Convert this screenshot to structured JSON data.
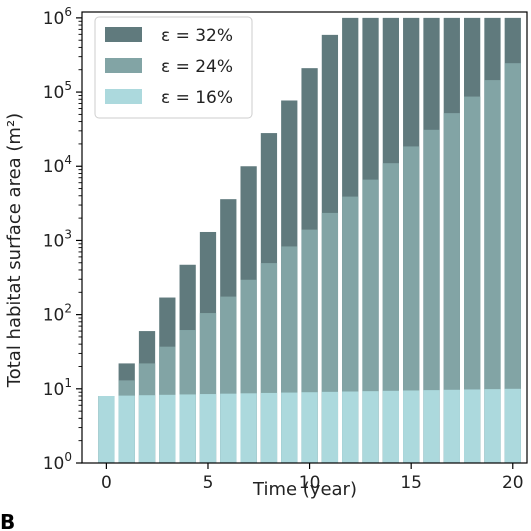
{
  "chart_data": {
    "type": "bar",
    "xlabel": "Time (year)",
    "ylabel": "Total habitat surface area (m²)",
    "yscale": "log",
    "ylim": [
      1,
      1200000
    ],
    "xlim": [
      -1.2,
      20.7
    ],
    "x_ticks": [
      0,
      5,
      10,
      15,
      20
    ],
    "y_ticks": [
      {
        "value": 1,
        "base": "10",
        "exp": "0"
      },
      {
        "value": 10,
        "base": "10",
        "exp": "1"
      },
      {
        "value": 100,
        "base": "10",
        "exp": "2"
      },
      {
        "value": 1000,
        "base": "10",
        "exp": "3"
      },
      {
        "value": 10000,
        "base": "10",
        "exp": "4"
      },
      {
        "value": 100000,
        "base": "10",
        "exp": "5"
      },
      {
        "value": 1000000,
        "base": "10",
        "exp": "6"
      }
    ],
    "legend_position": "top-left",
    "panel_label": "B",
    "x": [
      0,
      1,
      2,
      3,
      4,
      5,
      6,
      7,
      8,
      9,
      10,
      11,
      12,
      13,
      14,
      15,
      16,
      17,
      18,
      19,
      20
    ],
    "series": [
      {
        "name": "ε = 32%",
        "color": "#607a7d",
        "values": [
          8,
          22,
          60,
          170,
          470,
          1300,
          3600,
          10000,
          28000,
          77000,
          210000,
          590000,
          1000000,
          1000000,
          1000000,
          1000000,
          1000000,
          1000000,
          1000000,
          1000000,
          1000000
        ]
      },
      {
        "name": "ε = 24%",
        "color": "#82a4a5",
        "values": [
          8,
          13,
          22,
          37,
          62,
          105,
          175,
          295,
          495,
          830,
          1400,
          2350,
          3900,
          6600,
          11000,
          18500,
          31000,
          52000,
          87000,
          145000,
          245000
        ]
      },
      {
        "name": "ε = 16%",
        "color": "#acd9dd",
        "values": [
          8,
          8.1,
          8.2,
          8.3,
          8.4,
          8.5,
          8.6,
          8.7,
          8.8,
          8.9,
          9.0,
          9.1,
          9.2,
          9.3,
          9.4,
          9.5,
          9.6,
          9.7,
          9.8,
          9.9,
          10.0
        ]
      }
    ]
  }
}
